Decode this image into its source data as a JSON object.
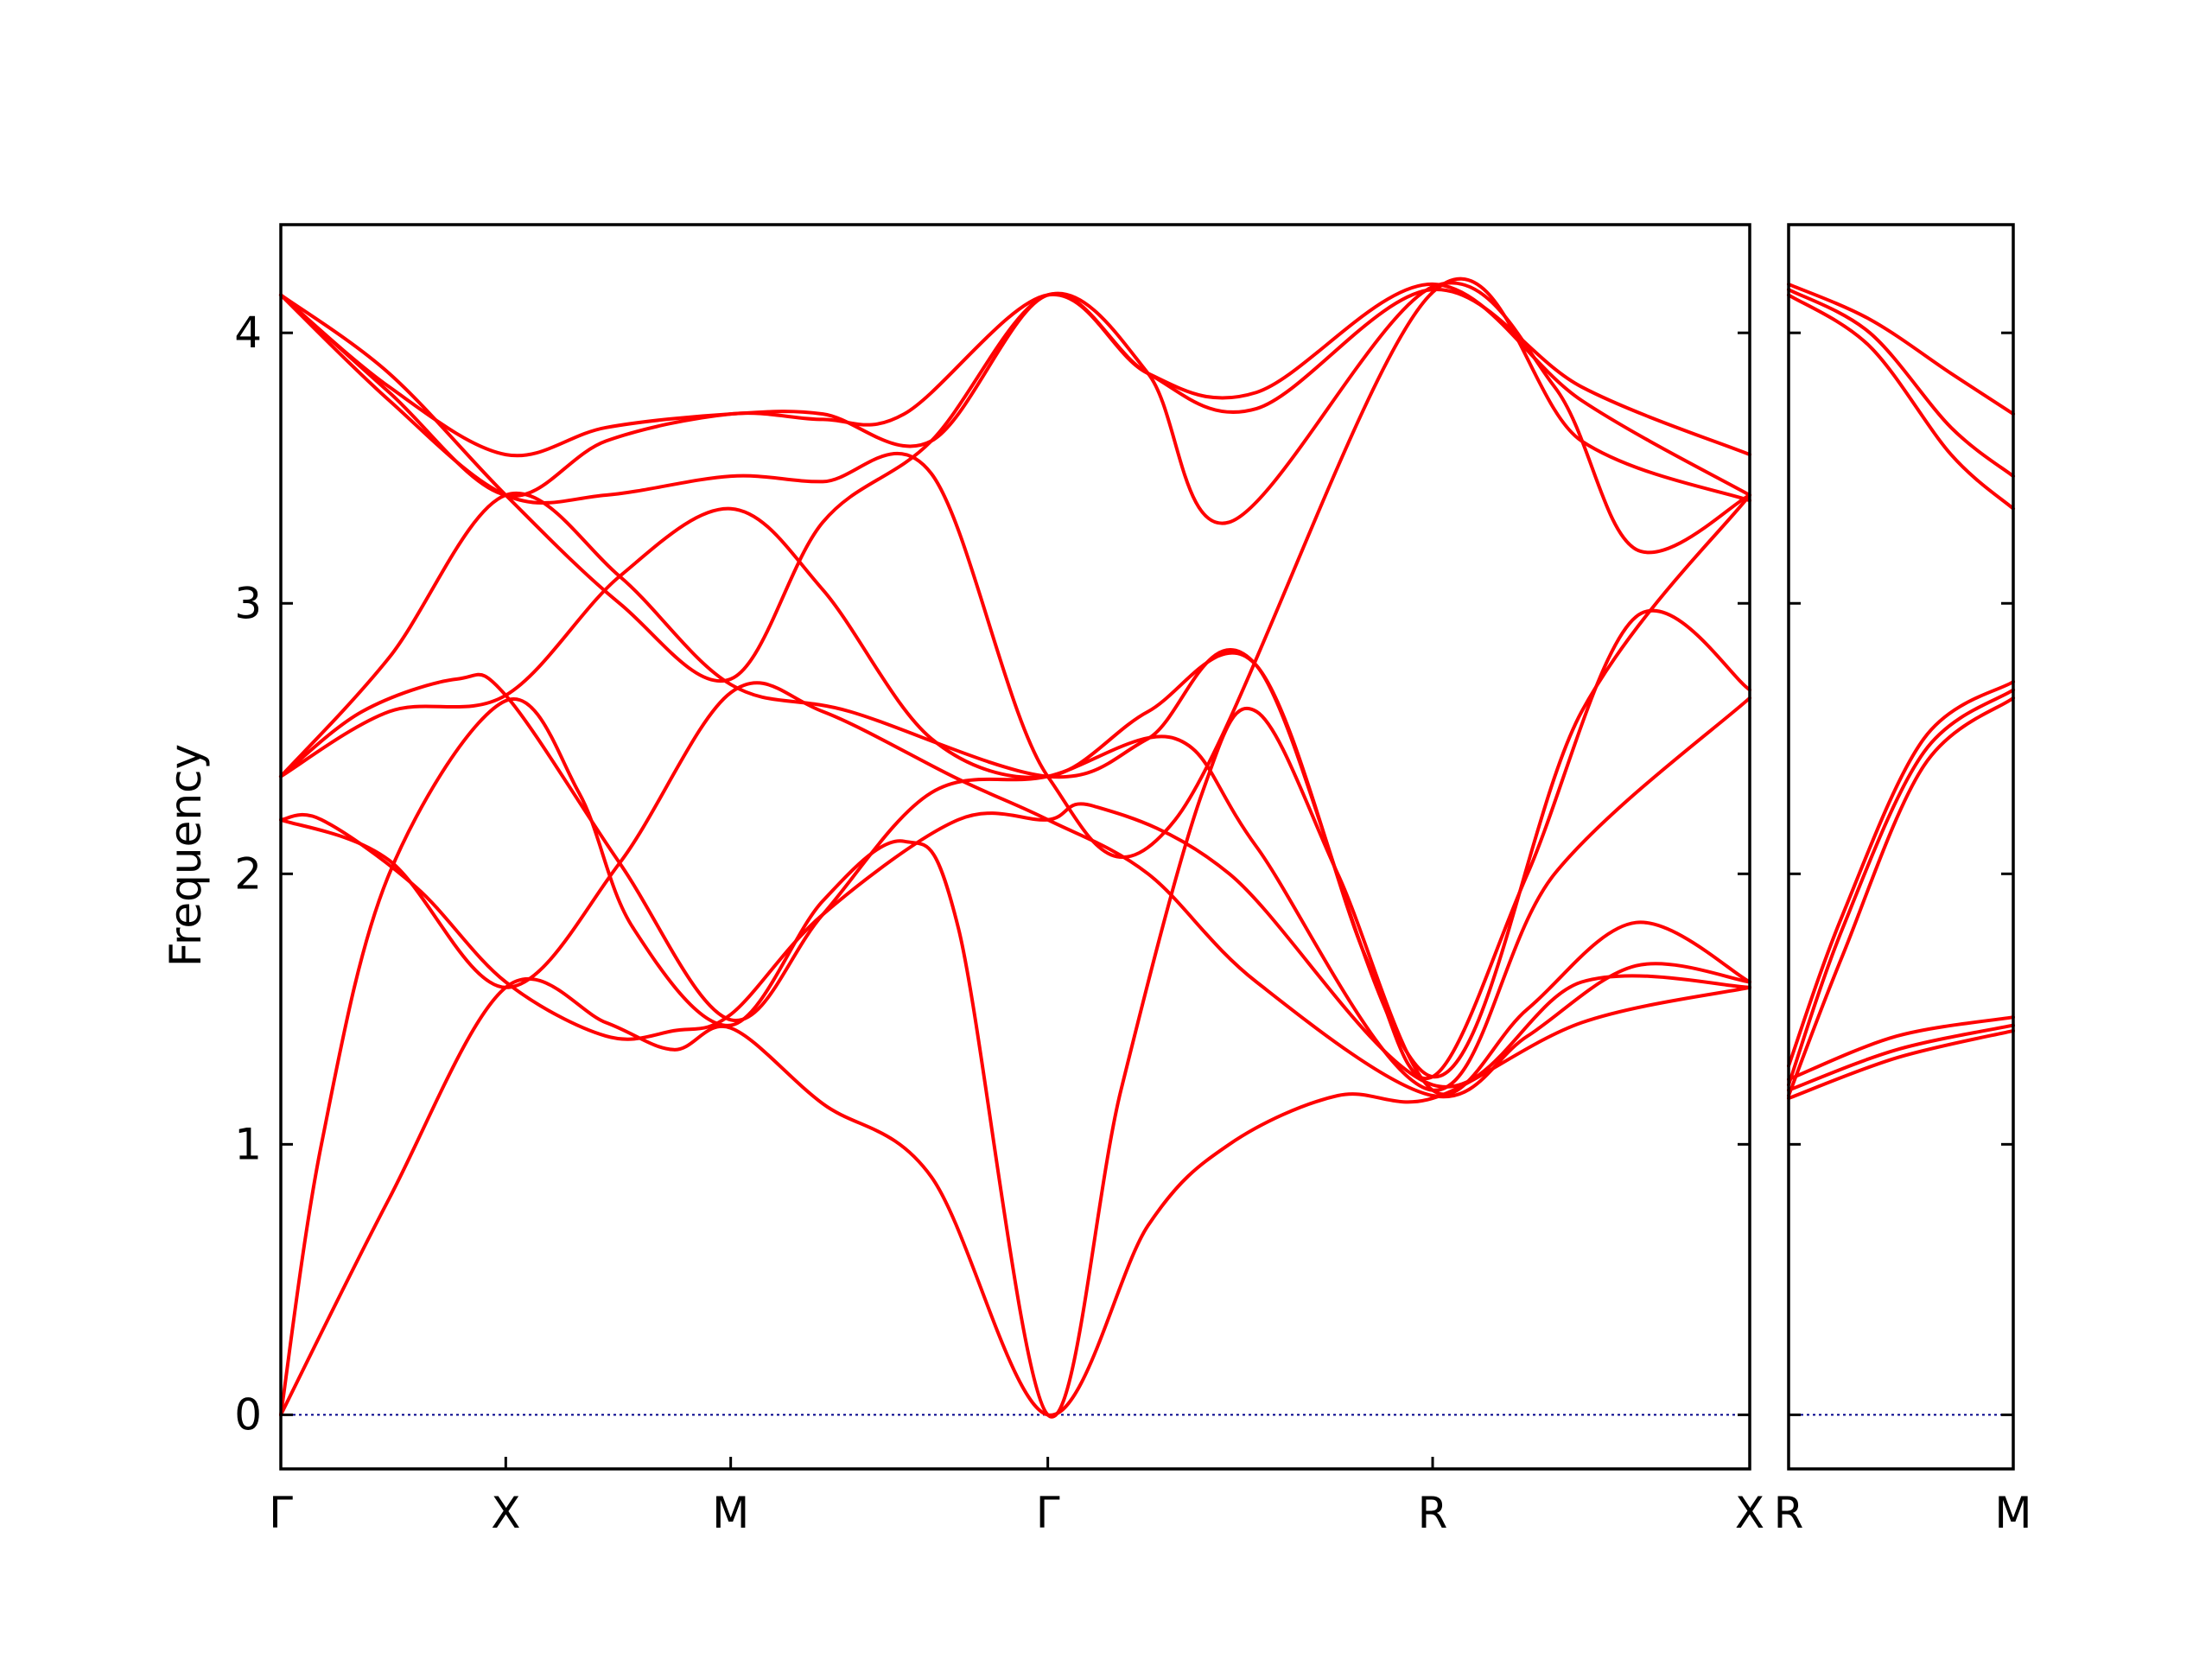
{
  "chart_data": {
    "type": "line",
    "title": "",
    "ylabel": "Frequency",
    "xlabel": "",
    "ylim": [
      -0.2,
      4.4
    ],
    "yticks": [
      0,
      1,
      2,
      3,
      4
    ],
    "grid": false,
    "colors": {
      "bands": "#ff0000",
      "zero_line": "#00008b",
      "frame": "#000000"
    },
    "panels": [
      {
        "name": "main",
        "xlim": [
          0,
          5.42
        ],
        "ticks": [
          {
            "x": 0.0,
            "label": "Γ"
          },
          {
            "x": 0.83,
            "label": "X"
          },
          {
            "x": 1.66,
            "label": "M"
          },
          {
            "x": 2.83,
            "label": "Γ"
          },
          {
            "x": 4.25,
            "label": "R"
          },
          {
            "x": 5.42,
            "label": "X"
          }
        ],
        "series": [
          {
            "values": [
              [
                0,
                0
              ],
              [
                0.4,
                0.8
              ],
              [
                0.83,
                1.58
              ],
              [
                1.2,
                1.45
              ],
              [
                1.45,
                1.35
              ],
              [
                1.66,
                1.43
              ],
              [
                2.0,
                1.15
              ],
              [
                2.4,
                0.88
              ],
              [
                2.83,
                0
              ],
              [
                3.2,
                0.7
              ],
              [
                3.5,
                1.0
              ],
              [
                3.9,
                1.18
              ],
              [
                4.25,
                1.17
              ],
              [
                4.8,
                1.45
              ],
              [
                5.42,
                1.58
              ]
            ]
          },
          {
            "values": [
              [
                0,
                0
              ],
              [
                0.15,
                1.0
              ],
              [
                0.4,
                2.0
              ],
              [
                0.83,
                2.64
              ],
              [
                1.1,
                2.3
              ],
              [
                1.3,
                1.8
              ],
              [
                1.66,
                1.44
              ],
              [
                2.0,
                1.9
              ],
              [
                2.3,
                2.12
              ],
              [
                2.5,
                1.8
              ],
              [
                2.83,
                0
              ],
              [
                3.1,
                1.2
              ],
              [
                3.4,
                2.3
              ],
              [
                3.6,
                2.6
              ],
              [
                3.9,
                2.0
              ],
              [
                4.25,
                1.2
              ],
              [
                4.6,
                1.5
              ],
              [
                5.0,
                1.82
              ],
              [
                5.42,
                1.6
              ]
            ]
          },
          {
            "values": [
              [
                0,
                2.2
              ],
              [
                0.15,
                2.2
              ],
              [
                0.5,
                1.95
              ],
              [
                0.83,
                1.6
              ],
              [
                1.2,
                1.4
              ],
              [
                1.45,
                1.42
              ],
              [
                1.66,
                1.48
              ],
              [
                2.0,
                1.85
              ],
              [
                2.5,
                2.2
              ],
              [
                2.83,
                2.2
              ],
              [
                3.0,
                2.25
              ],
              [
                3.5,
                2.0
              ],
              [
                4.25,
                1.22
              ],
              [
                4.8,
                1.6
              ],
              [
                5.42,
                1.58
              ]
            ]
          },
          {
            "values": [
              [
                0,
                2.2
              ],
              [
                0.4,
                2.05
              ],
              [
                0.83,
                1.58
              ],
              [
                1.25,
                2.04
              ],
              [
                1.66,
                2.67
              ],
              [
                2.0,
                2.6
              ],
              [
                2.5,
                2.35
              ],
              [
                2.83,
                2.2
              ],
              [
                3.2,
                2.0
              ],
              [
                3.6,
                1.6
              ],
              [
                4.25,
                1.18
              ],
              [
                4.6,
                1.4
              ],
              [
                5.0,
                1.66
              ],
              [
                5.42,
                1.6
              ]
            ]
          },
          {
            "values": [
              [
                0,
                2.36
              ],
              [
                0.3,
                2.6
              ],
              [
                0.65,
                2.72
              ],
              [
                0.83,
                2.66
              ],
              [
                1.25,
                2.04
              ],
              [
                1.66,
                1.46
              ],
              [
                2.0,
                1.85
              ],
              [
                2.4,
                2.3
              ],
              [
                2.83,
                2.36
              ],
              [
                3.3,
                2.5
              ],
              [
                3.6,
                2.1
              ],
              [
                4.25,
                1.2
              ],
              [
                4.7,
                2.0
              ],
              [
                5.42,
                2.65
              ]
            ]
          },
          {
            "values": [
              [
                0,
                2.36
              ],
              [
                0.4,
                2.6
              ],
              [
                0.83,
                2.66
              ],
              [
                1.25,
                3.1
              ],
              [
                1.66,
                3.35
              ],
              [
                2.0,
                3.05
              ],
              [
                2.4,
                2.5
              ],
              [
                2.83,
                2.36
              ],
              [
                3.2,
                2.6
              ],
              [
                3.6,
                2.77
              ],
              [
                4.0,
                1.7
              ],
              [
                4.25,
                1.25
              ],
              [
                4.6,
                2.0
              ],
              [
                5.0,
                2.95
              ],
              [
                5.42,
                2.68
              ]
            ]
          },
          {
            "values": [
              [
                0,
                2.36
              ],
              [
                0.4,
                2.8
              ],
              [
                0.83,
                3.4
              ],
              [
                1.25,
                3.1
              ],
              [
                1.66,
                2.7
              ],
              [
                2.1,
                2.6
              ],
              [
                2.83,
                2.36
              ],
              [
                3.2,
                2.5
              ],
              [
                3.6,
                2.77
              ],
              [
                4.25,
                1.25
              ],
              [
                4.8,
                2.6
              ],
              [
                5.42,
                3.4
              ]
            ]
          },
          {
            "values": [
              [
                0,
                4.14
              ],
              [
                0.4,
                3.85
              ],
              [
                0.83,
                3.4
              ],
              [
                1.25,
                3.0
              ],
              [
                1.66,
                2.72
              ],
              [
                2.0,
                3.3
              ],
              [
                2.4,
                3.6
              ],
              [
                2.83,
                4.14
              ],
              [
                3.2,
                3.85
              ],
              [
                3.5,
                3.3
              ],
              [
                4.25,
                4.17
              ],
              [
                4.7,
                3.8
              ],
              [
                5.0,
                3.2
              ],
              [
                5.42,
                3.4
              ]
            ]
          },
          {
            "values": [
              [
                0,
                4.14
              ],
              [
                0.4,
                3.75
              ],
              [
                0.83,
                3.4
              ],
              [
                1.2,
                3.4
              ],
              [
                1.66,
                3.47
              ],
              [
                2.0,
                3.45
              ],
              [
                2.4,
                3.48
              ],
              [
                2.83,
                2.36
              ],
              [
                3.3,
                2.2
              ],
              [
                4.25,
                4.15
              ],
              [
                4.8,
                3.6
              ],
              [
                5.42,
                3.38
              ]
            ]
          },
          {
            "values": [
              [
                0,
                4.14
              ],
              [
                0.4,
                3.8
              ],
              [
                0.83,
                3.55
              ],
              [
                1.2,
                3.65
              ],
              [
                1.66,
                3.7
              ],
              [
                2.0,
                3.7
              ],
              [
                2.4,
                3.6
              ],
              [
                2.83,
                4.14
              ],
              [
                3.2,
                3.85
              ],
              [
                3.6,
                3.72
              ],
              [
                4.25,
                4.16
              ],
              [
                4.8,
                3.8
              ],
              [
                5.42,
                3.55
              ]
            ]
          },
          {
            "values": [
              [
                0,
                4.14
              ],
              [
                0.4,
                3.78
              ],
              [
                0.83,
                3.4
              ],
              [
                1.2,
                3.6
              ],
              [
                1.66,
                3.7
              ],
              [
                2.0,
                3.68
              ],
              [
                2.3,
                3.7
              ],
              [
                2.83,
                4.14
              ],
              [
                3.2,
                3.85
              ],
              [
                3.6,
                3.78
              ],
              [
                4.25,
                4.18
              ],
              [
                4.8,
                3.75
              ],
              [
                5.42,
                3.4
              ]
            ]
          }
        ]
      },
      {
        "name": "secondary",
        "xlim": [
          0,
          0.83
        ],
        "ticks": [
          {
            "x": 0.0,
            "label": "R"
          },
          {
            "x": 0.83,
            "label": "M"
          }
        ],
        "series": [
          {
            "values": [
              [
                0,
                1.17
              ],
              [
                0.4,
                1.32
              ],
              [
                0.83,
                1.42
              ]
            ]
          },
          {
            "values": [
              [
                0,
                1.2
              ],
              [
                0.4,
                1.35
              ],
              [
                0.83,
                1.44
              ]
            ]
          },
          {
            "values": [
              [
                0,
                1.24
              ],
              [
                0.4,
                1.4
              ],
              [
                0.83,
                1.47
              ]
            ]
          },
          {
            "values": [
              [
                0,
                1.18
              ],
              [
                0.2,
                1.7
              ],
              [
                0.5,
                2.4
              ],
              [
                0.83,
                2.65
              ]
            ]
          },
          {
            "values": [
              [
                0,
                1.22
              ],
              [
                0.2,
                1.8
              ],
              [
                0.5,
                2.45
              ],
              [
                0.83,
                2.68
              ]
            ]
          },
          {
            "values": [
              [
                0,
                1.29
              ],
              [
                0.2,
                1.85
              ],
              [
                0.5,
                2.5
              ],
              [
                0.83,
                2.71
              ]
            ]
          },
          {
            "values": [
              [
                0,
                4.14
              ],
              [
                0.3,
                3.95
              ],
              [
                0.6,
                3.55
              ],
              [
                0.83,
                3.35
              ]
            ]
          },
          {
            "values": [
              [
                0,
                4.16
              ],
              [
                0.3,
                4.0
              ],
              [
                0.6,
                3.65
              ],
              [
                0.83,
                3.47
              ]
            ]
          },
          {
            "values": [
              [
                0,
                4.18
              ],
              [
                0.3,
                4.05
              ],
              [
                0.6,
                3.85
              ],
              [
                0.83,
                3.7
              ]
            ]
          }
        ]
      }
    ]
  }
}
